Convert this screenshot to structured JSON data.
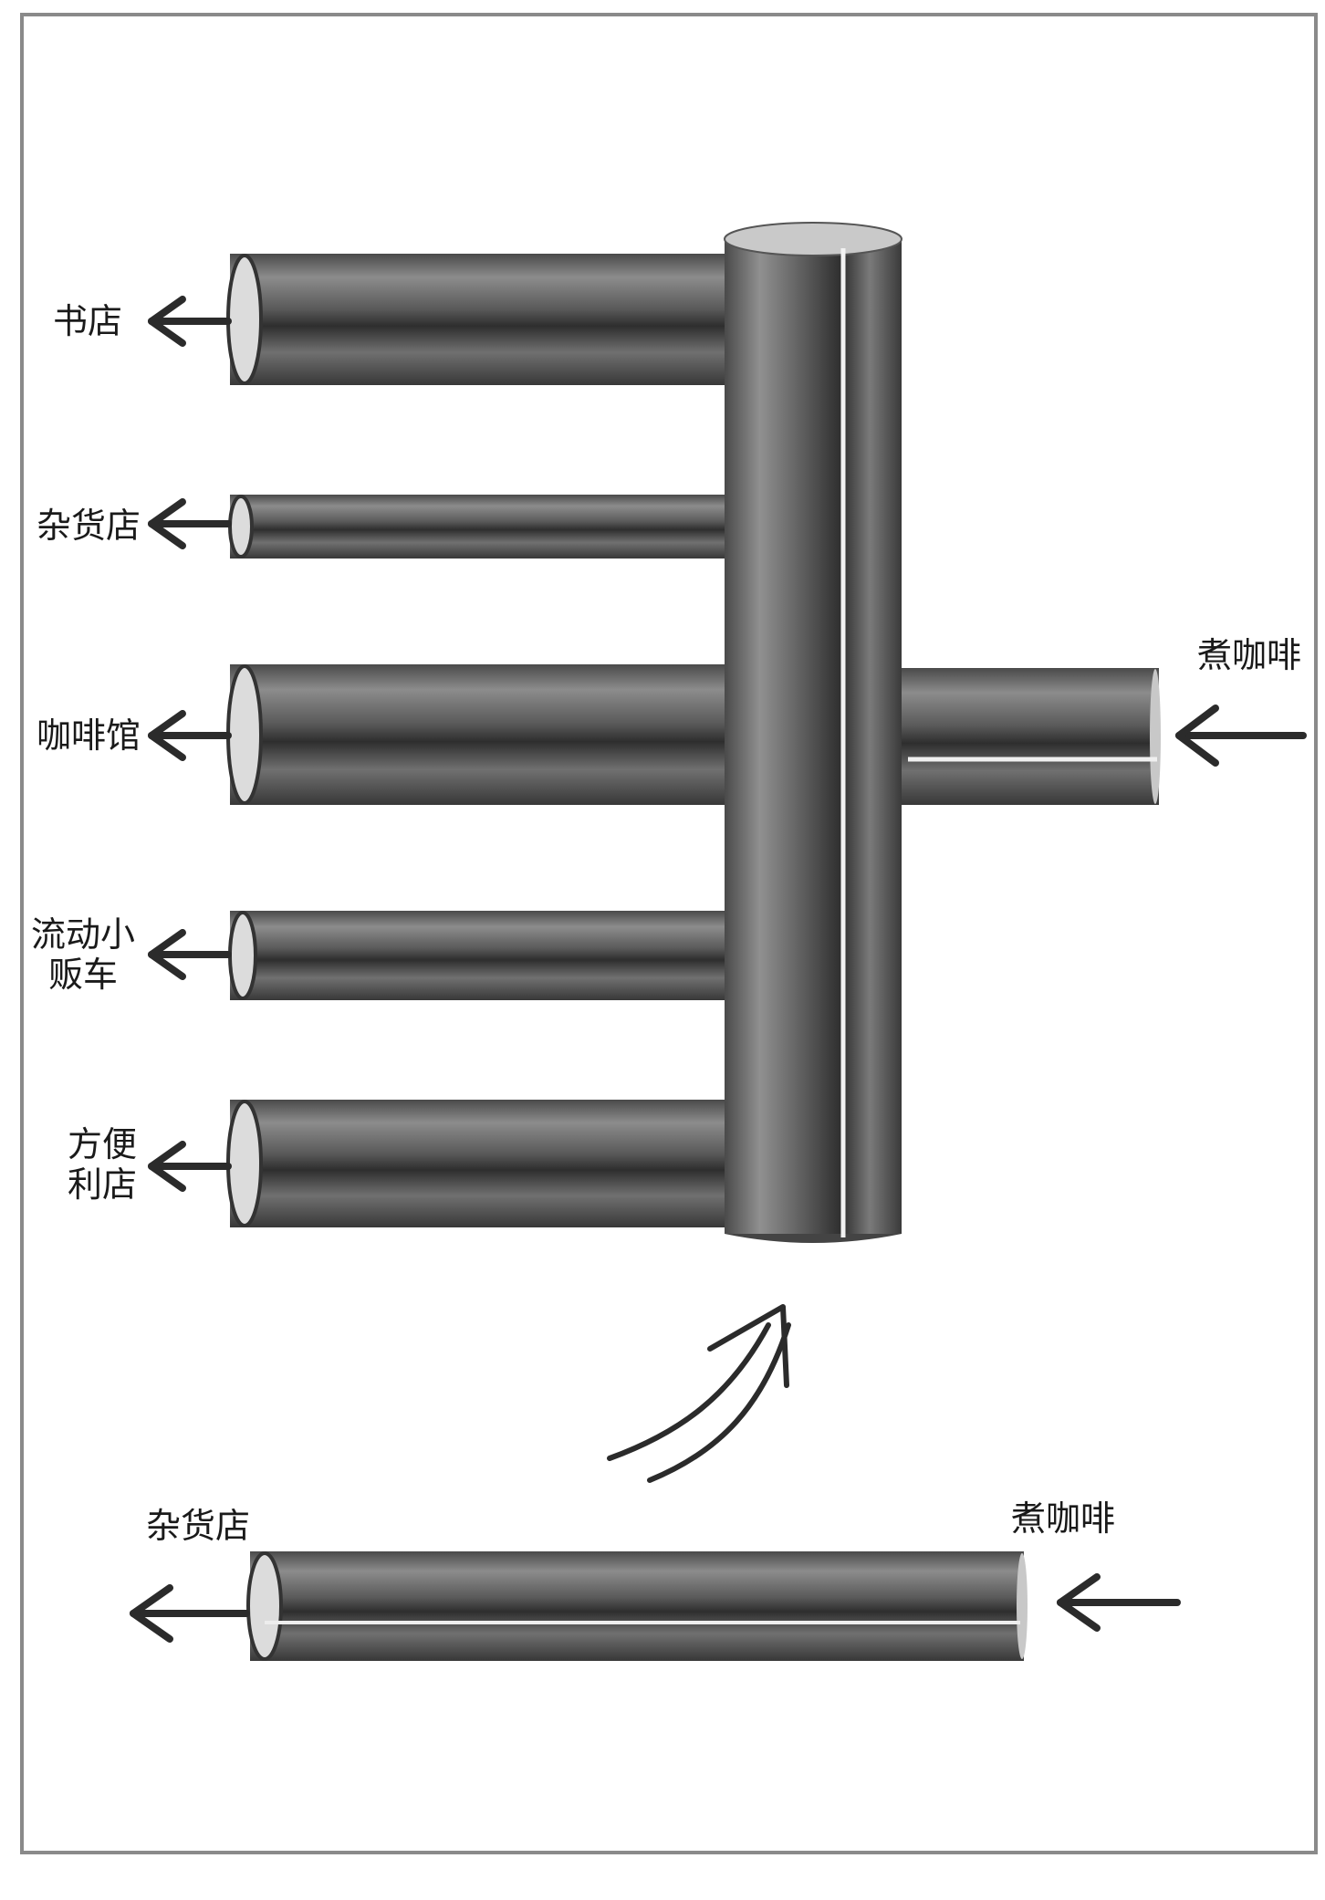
{
  "diagram": {
    "top": {
      "input_label": "煮咖啡",
      "outputs": [
        {
          "label": "书店",
          "pipe": "large"
        },
        {
          "label": "杂货店",
          "pipe": "small"
        },
        {
          "label": "咖啡馆",
          "pipe": "large"
        },
        {
          "label": "流动小\n贩车",
          "pipe": "small"
        },
        {
          "label": "方便\n利店",
          "pipe": "large"
        }
      ]
    },
    "bottom": {
      "input_label": "煮咖啡",
      "output_label": "杂货店"
    }
  },
  "colors": {
    "pipe_dark": "#3a3a3a",
    "pipe_light": "#9a9a9a",
    "arrow": "#2b2b2b",
    "frame": "#8a8a8a"
  }
}
